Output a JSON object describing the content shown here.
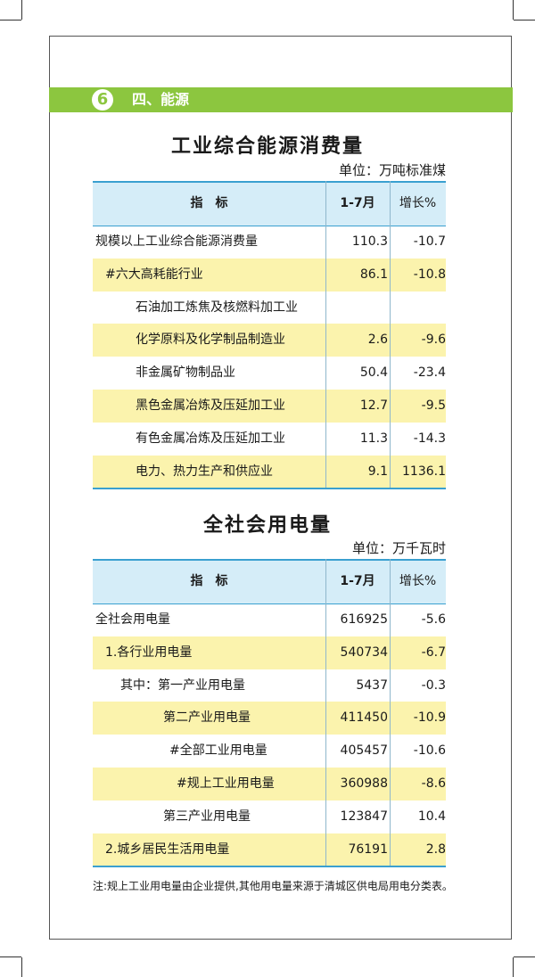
{
  "section": {
    "number": 6,
    "title": "四、能源"
  },
  "tables": [
    {
      "title": "工业综合能源消费量",
      "unit": "单位：万吨标准煤",
      "header": [
        "指　标",
        "1-7月",
        "增长%"
      ],
      "rows": [
        [
          "规模以上工业综合能源消费量",
          110.3,
          -10.7
        ],
        [
          "#六大高耗能行业",
          86.1,
          -10.8
        ],
        [
          "石油加工炼焦及核燃料加工业",
          null,
          null
        ],
        [
          "化学原料及化学制品制造业",
          2.6,
          -9.6
        ],
        [
          "非金属矿物制品业",
          50.4,
          -23.4
        ],
        [
          "黑色金属冶炼及压延加工业",
          12.7,
          -9.5
        ],
        [
          "有色金属冶炼及压延加工业",
          11.3,
          -14.3
        ],
        [
          "电力、热力生产和供应业",
          9.1,
          1136.1
        ]
      ]
    },
    {
      "title": "全社会用电量",
      "unit": "单位：万千瓦时",
      "header": [
        "指　标",
        "1-7月",
        "增长%"
      ],
      "rows": [
        [
          "全社会用电量",
          616925,
          -5.6
        ],
        [
          "1.各行业用电量",
          540734,
          -6.7
        ],
        [
          "其中：第一产业用电量",
          5437,
          -0.3
        ],
        [
          "第二产业用电量",
          411450,
          -10.9
        ],
        [
          "#全部工业用电量",
          405457,
          -10.6
        ],
        [
          "#规上工业用电量",
          360988,
          -8.6
        ],
        [
          "第三产业用电量",
          123847,
          10.4
        ],
        [
          "2.城乡居民生活用电量",
          76191,
          2.8
        ]
      ]
    }
  ],
  "note": "注:规上工业用电量由企业提供,其他用电量来源于清城区供电局用电分类表。"
}
